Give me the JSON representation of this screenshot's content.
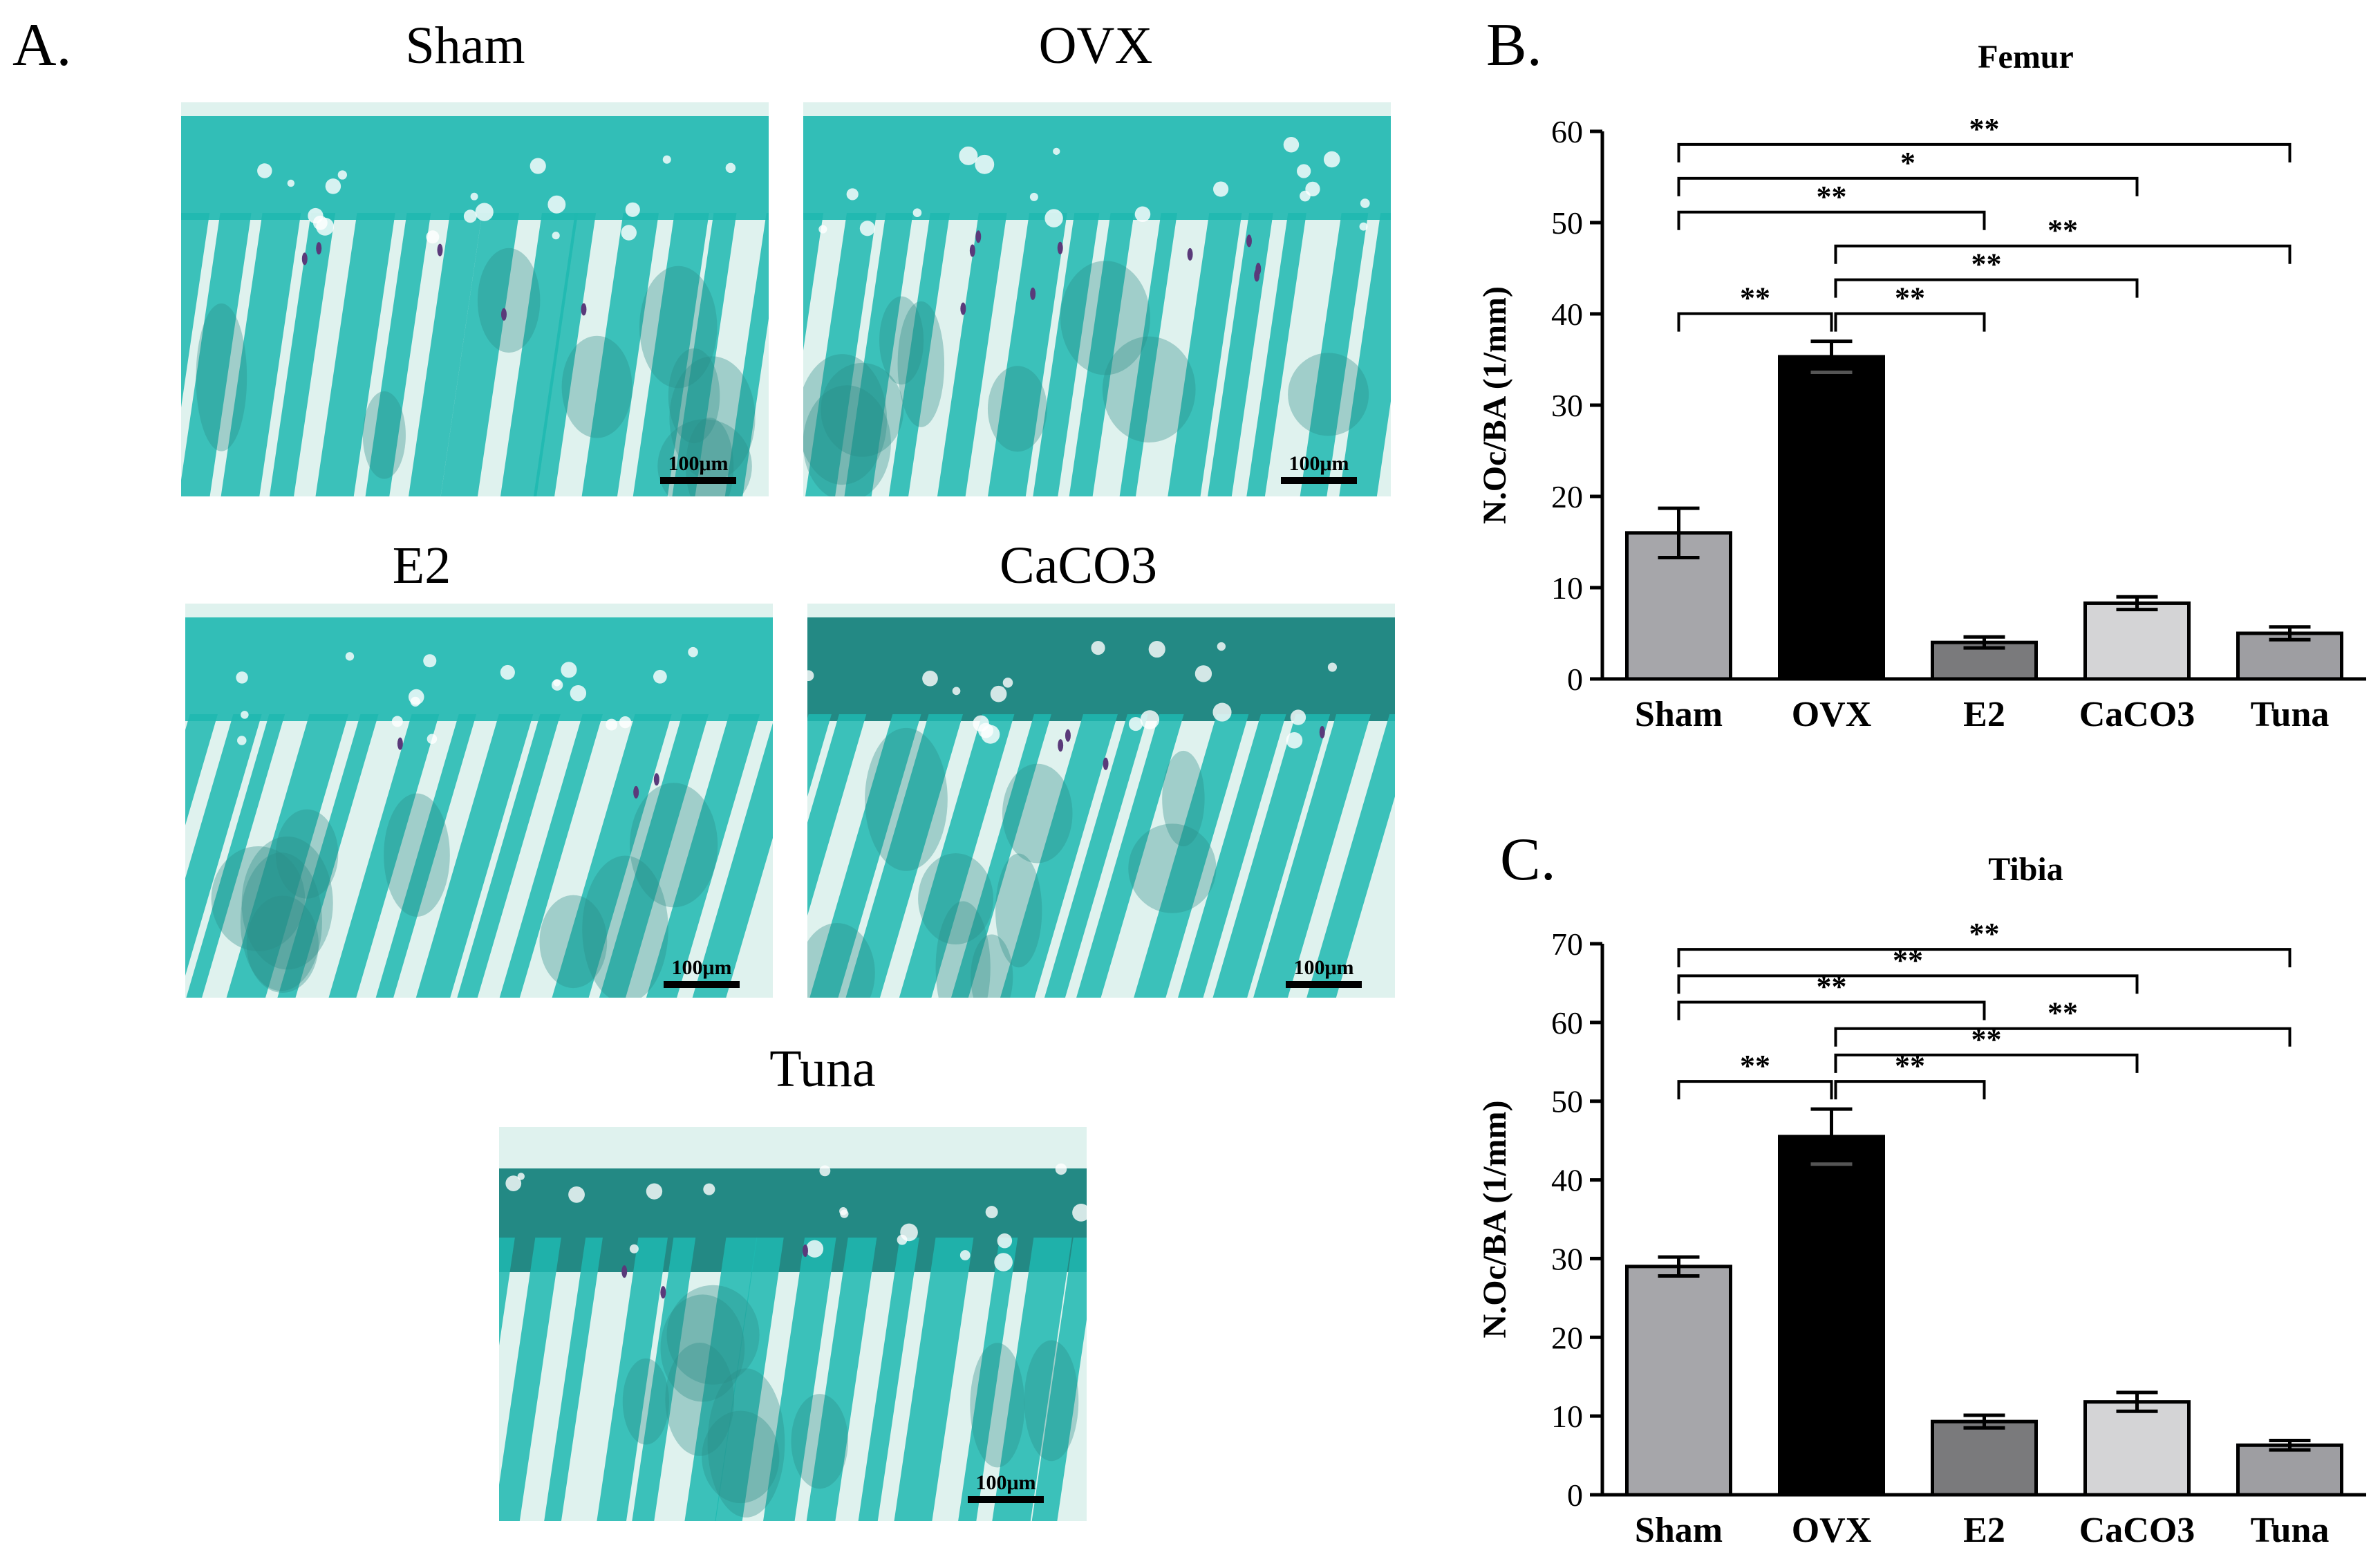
{
  "panels": {
    "A": {
      "letter": "A.",
      "images": [
        {
          "label": "Sham",
          "scale_bar": "100μm"
        },
        {
          "label": "OVX",
          "scale_bar": "100μm"
        },
        {
          "label": "E2",
          "scale_bar": "100μm"
        },
        {
          "label": "CaCO3",
          "scale_bar": "100μm"
        },
        {
          "label": "Tuna",
          "scale_bar": "100μm"
        }
      ]
    },
    "B": {
      "letter": "B."
    },
    "C": {
      "letter": "C."
    }
  },
  "colors": {
    "stain_teal": "#1fb8b0",
    "stain_light": "#dff2ee",
    "cartilage_dark": "#0e7d78",
    "marrow": "#2a8c86",
    "osteoclast": "#5a3a7a",
    "sham_bar": "#a6a6aa",
    "ovx_bar": "#000000",
    "e2_bar": "#7a7a7c",
    "caco3_bar": "#d4d4d6",
    "tuna_bar": "#9e9ea2"
  },
  "chart_data": [
    {
      "type": "bar",
      "title": "Femur",
      "ylabel": "N.Oc/BA (1/mm)",
      "xlabel": "",
      "categories": [
        "Sham",
        "OVX",
        "E2",
        "CaCO3",
        "Tuna"
      ],
      "values": [
        16,
        35.3,
        4,
        8.3,
        5
      ],
      "errors": [
        2.7,
        1.7,
        0.6,
        0.7,
        0.7
      ],
      "ylim": [
        0,
        60
      ],
      "yticks": [
        0,
        10,
        20,
        30,
        40,
        50,
        60
      ],
      "significance": [
        {
          "from": 0,
          "to": 1,
          "label": "**",
          "level": 0
        },
        {
          "from": 1,
          "to": 2,
          "label": "**",
          "level": 0
        },
        {
          "from": 1,
          "to": 3,
          "label": "**",
          "level": 1
        },
        {
          "from": 1,
          "to": 4,
          "label": "**",
          "level": 2
        },
        {
          "from": 0,
          "to": 2,
          "label": "**",
          "level": 3
        },
        {
          "from": 0,
          "to": 3,
          "label": "*",
          "level": 4
        },
        {
          "from": 0,
          "to": 4,
          "label": "**",
          "level": 5
        }
      ]
    },
    {
      "type": "bar",
      "title": "Tibia",
      "ylabel": "N.Oc/BA (1/mm)",
      "xlabel": "",
      "categories": [
        "Sham",
        "OVX",
        "E2",
        "CaCO3",
        "Tuna"
      ],
      "values": [
        29,
        45.5,
        9.3,
        11.8,
        6.3
      ],
      "errors": [
        1.2,
        3.5,
        0.8,
        1.2,
        0.6
      ],
      "ylim": [
        0,
        70
      ],
      "yticks": [
        0,
        10,
        20,
        30,
        40,
        50,
        60,
        70
      ],
      "significance": [
        {
          "from": 0,
          "to": 1,
          "label": "**",
          "level": 0
        },
        {
          "from": 1,
          "to": 2,
          "label": "**",
          "level": 0
        },
        {
          "from": 1,
          "to": 3,
          "label": "**",
          "level": 1
        },
        {
          "from": 1,
          "to": 4,
          "label": "**",
          "level": 2
        },
        {
          "from": 0,
          "to": 2,
          "label": "**",
          "level": 3
        },
        {
          "from": 0,
          "to": 3,
          "label": "**",
          "level": 4
        },
        {
          "from": 0,
          "to": 4,
          "label": "**",
          "level": 5
        }
      ]
    }
  ]
}
